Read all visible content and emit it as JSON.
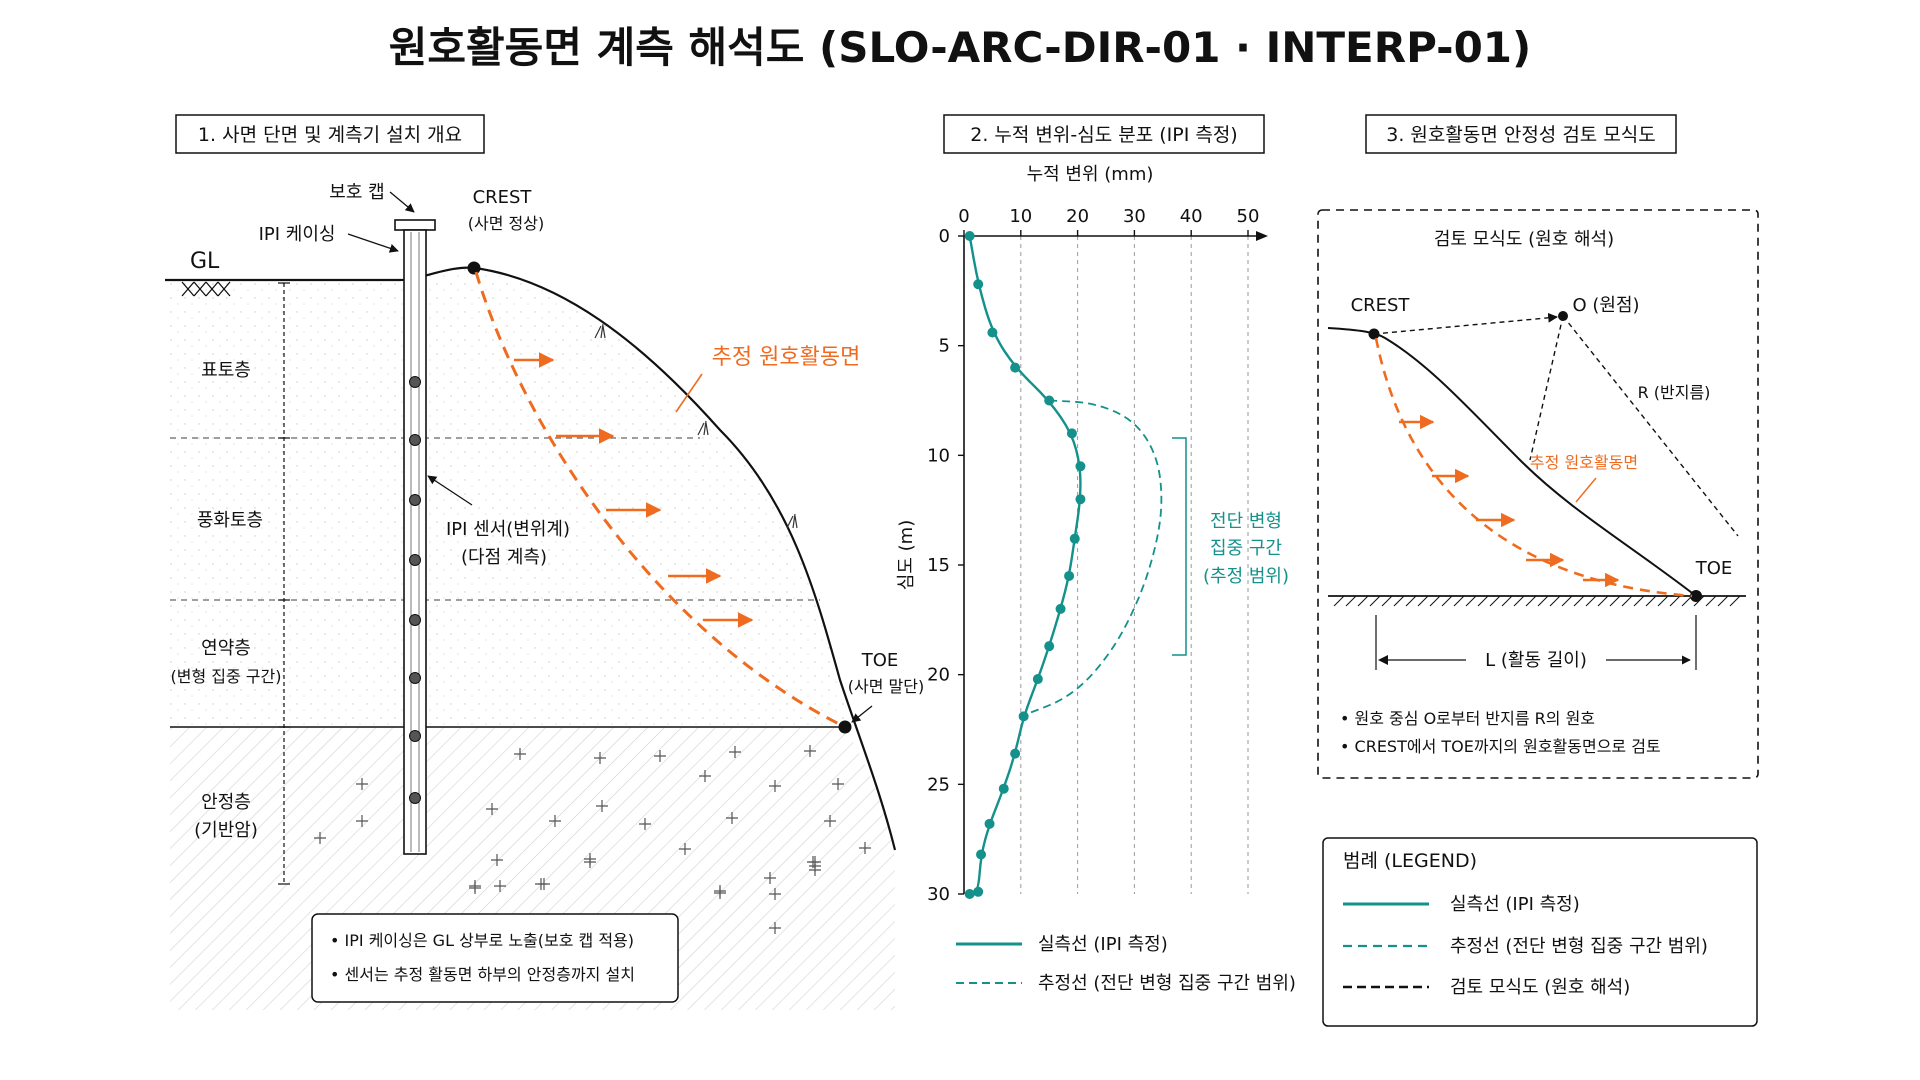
{
  "title": "원호활동면 계측 해석도 (SLO-ARC-DIR-01 · INTERP-01)",
  "colors": {
    "measured": "#14918b",
    "estimated": "#14918b",
    "slip": "#ef6b1f",
    "ink": "#111111"
  },
  "panel1": {
    "header": "1. 사면 단면 및 계측기 설치 개요",
    "gl": "GL",
    "cap": "보호 캡",
    "casing": "IPI 케이싱",
    "crest": "CREST",
    "crest_sub": "(사면 정상)",
    "slip_label": "추정 원호활동면",
    "sensor": "IPI 센서(변위계)",
    "sensor_sub": "(다점 계측)",
    "toe": "TOE",
    "toe_sub": "(사면 말단)",
    "layers": [
      {
        "name": "표토층",
        "sub": ""
      },
      {
        "name": "풍화토층",
        "sub": ""
      },
      {
        "name": "연약층",
        "sub": "(변형 집중 구간)"
      },
      {
        "name": "안정층",
        "sub": "(기반암)"
      }
    ],
    "notes": [
      "IPI 케이싱은 GL 상부로 노출(보호 캡 적용)",
      "센서는 추정 활동면 하부의 안정층까지 설치"
    ]
  },
  "panel2": {
    "header": "2. 누적 변위-심도 분포 (IPI 측정)",
    "xlabel": "누적 변위 (mm)",
    "ylabel": "심도 (m)",
    "shear_zone": [
      "전단 변형",
      "집중 구간",
      "(추정 범위)"
    ],
    "legend": [
      {
        "label": "실측선 (IPI 측정)",
        "style": "solid"
      },
      {
        "label": "추정선 (전단 변형 집중 구간 범위)",
        "style": "dashed"
      }
    ]
  },
  "panel3": {
    "header": "3. 원호활동면 안정성 검토 모식도",
    "subtitle": "검토 모식도 (원호 해석)",
    "crest": "CREST",
    "origin": "O (원점)",
    "radius": "R (반지름)",
    "slip_label": "추정 원호활동면",
    "toe": "TOE",
    "length": "L (활동 길이)",
    "notes": [
      "원호 중심 O로부터 반지름 R의 원호",
      "CREST에서 TOE까지의 원호활동면으로 검토"
    ]
  },
  "legend": {
    "title": "범례 (LEGEND)",
    "items": [
      {
        "label": "실측선 (IPI 측정)",
        "color": "#14918b",
        "style": "solid"
      },
      {
        "label": "추정선 (전단 변형 집중 구간 범위)",
        "color": "#14918b",
        "style": "dashed"
      },
      {
        "label": "검토 모식도 (원호 해석)",
        "color": "#111111",
        "style": "dashed"
      }
    ]
  },
  "chart_data": {
    "type": "line",
    "xlabel": "누적 변위 (mm)",
    "ylabel": "심도 (m)",
    "xlim": [
      0,
      50
    ],
    "ylim": [
      0,
      30
    ],
    "xticks": [
      0,
      10,
      20,
      30,
      40,
      50
    ],
    "yticks": [
      0,
      5,
      10,
      15,
      20,
      25,
      30
    ],
    "y_inverted": true,
    "grid": "vertical dashed",
    "series": [
      {
        "name": "실측선 (IPI 측정)",
        "style": "solid-markers",
        "x": [
          1,
          2.5,
          5,
          9,
          15,
          19,
          20.5,
          20.5,
          19.5,
          18.5,
          17,
          15,
          13,
          10.5,
          9,
          7,
          4.5,
          3,
          2.5,
          1
        ],
        "y": [
          0,
          2.2,
          4.4,
          6.0,
          7.5,
          9.0,
          10.5,
          12.0,
          13.8,
          15.5,
          17.0,
          18.7,
          20.2,
          21.9,
          23.6,
          25.2,
          26.8,
          28.2,
          29.9,
          30
        ]
      },
      {
        "name": "추정선 (전단 변형 집중 구간 범위)",
        "style": "dashed",
        "x": [
          15,
          23,
          30,
          34,
          35,
          34,
          31,
          26,
          19,
          10
        ],
        "y": [
          7.5,
          7.6,
          8.4,
          10.0,
          12.0,
          14.0,
          16.5,
          19.0,
          21.0,
          21.9
        ]
      }
    ]
  }
}
